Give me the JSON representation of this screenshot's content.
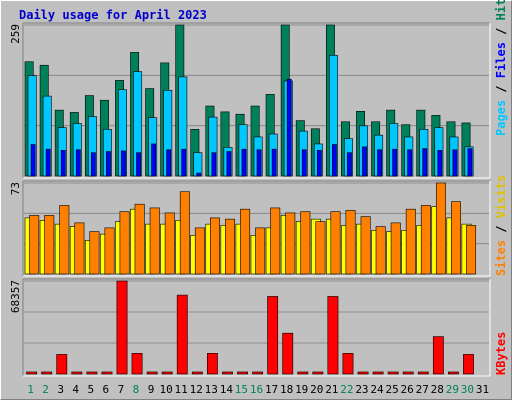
{
  "title": "Daily usage for April 2023",
  "colors": {
    "hits": "#00805a",
    "files": "#00c8ff",
    "pages": "#0000ff",
    "visits": "#ffff00",
    "sites": "#ff8000",
    "kbytes": "#ff0000",
    "weekend_label": "#00805a",
    "weekday_label": "#000000"
  },
  "legend": {
    "pages": "Pages",
    "files": "Files",
    "hits": "Hits",
    "sites": "Sites",
    "visits": "Visits",
    "kbytes": "KBytes",
    "sep": " / "
  },
  "chart_data": [
    {
      "type": "bar",
      "panel": "top",
      "ymax_label": "259",
      "ylim": [
        0,
        259
      ],
      "categories": [
        "1",
        "2",
        "3",
        "4",
        "5",
        "6",
        "7",
        "8",
        "9",
        "10",
        "11",
        "12",
        "13",
        "14",
        "15",
        "16",
        "17",
        "18",
        "19",
        "20",
        "21",
        "22",
        "23",
        "24",
        "25",
        "26",
        "27",
        "28",
        "29",
        "30",
        "31"
      ],
      "series": [
        {
          "name": "Hits",
          "values": [
            196,
            190,
            113,
            109,
            138,
            130,
            164,
            212,
            150,
            194,
            259,
            80,
            120,
            110,
            106,
            120,
            140,
            259,
            95,
            81,
            259,
            93,
            111,
            93,
            113,
            88,
            113,
            104,
            93,
            91,
            0
          ]
        },
        {
          "name": "Files",
          "values": [
            172,
            137,
            83,
            90,
            102,
            80,
            148,
            179,
            100,
            147,
            170,
            40,
            101,
            49,
            88,
            67,
            72,
            163,
            77,
            55,
            207,
            64,
            86,
            70,
            90,
            67,
            80,
            83,
            67,
            50,
            0
          ]
        },
        {
          "name": "Pages",
          "values": [
            54,
            46,
            44,
            45,
            40,
            42,
            43,
            40,
            55,
            45,
            46,
            5,
            40,
            42,
            46,
            45,
            46,
            166,
            45,
            44,
            54,
            40,
            50,
            45,
            46,
            45,
            47,
            44,
            45,
            47,
            0
          ]
        }
      ]
    },
    {
      "type": "bar",
      "panel": "middle",
      "ymax_label": "73",
      "ylim": [
        0,
        73
      ],
      "categories": [
        "1",
        "2",
        "3",
        "4",
        "5",
        "6",
        "7",
        "8",
        "9",
        "10",
        "11",
        "12",
        "13",
        "14",
        "15",
        "16",
        "17",
        "18",
        "19",
        "20",
        "21",
        "22",
        "23",
        "24",
        "25",
        "26",
        "27",
        "28",
        "29",
        "30",
        "31"
      ],
      "series": [
        {
          "name": "Visits",
          "values": [
            45,
            43,
            40,
            38,
            27,
            32,
            42,
            52,
            40,
            40,
            43,
            31,
            40,
            39,
            40,
            31,
            37,
            47,
            42,
            44,
            44,
            39,
            40,
            35,
            34,
            35,
            39,
            54,
            45,
            40,
            0
          ]
        },
        {
          "name": "Sites",
          "values": [
            47,
            47,
            55,
            41,
            34,
            37,
            50,
            56,
            53,
            49,
            66,
            37,
            45,
            44,
            52,
            37,
            53,
            49,
            50,
            42,
            50,
            51,
            46,
            38,
            41,
            52,
            55,
            73,
            58,
            39,
            0
          ]
        }
      ]
    },
    {
      "type": "bar",
      "panel": "bottom",
      "ymax_label": "68357",
      "ylim": [
        0,
        68357
      ],
      "categories": [
        "1",
        "2",
        "3",
        "4",
        "5",
        "6",
        "7",
        "8",
        "9",
        "10",
        "11",
        "12",
        "13",
        "14",
        "15",
        "16",
        "17",
        "18",
        "19",
        "20",
        "21",
        "22",
        "23",
        "24",
        "25",
        "26",
        "27",
        "28",
        "29",
        "30",
        "31"
      ],
      "series": [
        {
          "name": "KBytes",
          "values": [
            1500,
            1500,
            14400,
            1500,
            1500,
            1500,
            68357,
            15200,
            1500,
            1500,
            58000,
            1500,
            15200,
            1500,
            1500,
            1500,
            57000,
            30000,
            1500,
            1500,
            57000,
            15200,
            1500,
            1500,
            1500,
            1500,
            1500,
            27500,
            1500,
            14400,
            0
          ]
        }
      ]
    }
  ],
  "weekend_days": [
    1,
    2,
    8,
    15,
    16,
    22,
    29,
    30
  ]
}
